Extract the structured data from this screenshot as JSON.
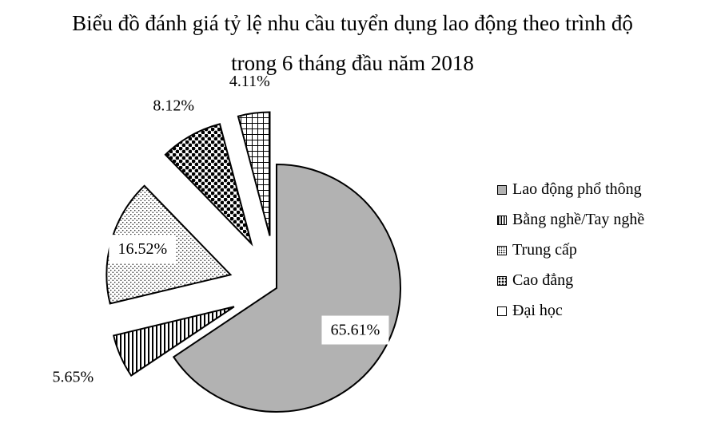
{
  "chart_data": {
    "type": "pie",
    "title": "Biểu đồ đánh giá tỷ lệ nhu cầu tuyển dụng lao động theo trình độ trong 6 tháng đầu năm 2018",
    "title_lines": [
      "Biểu đồ đánh giá tỷ lệ nhu cầu tuyển dụng lao động theo trình độ",
      "trong 6 tháng đầu năm 2018"
    ],
    "legend_position": "right",
    "slices": [
      {
        "label": "Lao động phổ thông",
        "value": 65.61,
        "value_label": "65.61%",
        "fill": "#b2b2b2",
        "pattern": "solid-gray"
      },
      {
        "label": "Bằng nghề/Tay nghề",
        "value": 5.65,
        "value_label": "5.65%",
        "fill": "#ffffff",
        "pattern": "vertical-lines"
      },
      {
        "label": "Trung cấp",
        "value": 16.52,
        "value_label": "16.52%",
        "fill": "#ffffff",
        "pattern": "dots"
      },
      {
        "label": "Cao đẳng",
        "value": 8.12,
        "value_label": "8.12%",
        "fill": "#ffffff",
        "pattern": "checkerboard-dots"
      },
      {
        "label": "Đại học",
        "value": 4.11,
        "value_label": "4.11%",
        "fill": "#ffffff",
        "pattern": "grid"
      }
    ]
  }
}
